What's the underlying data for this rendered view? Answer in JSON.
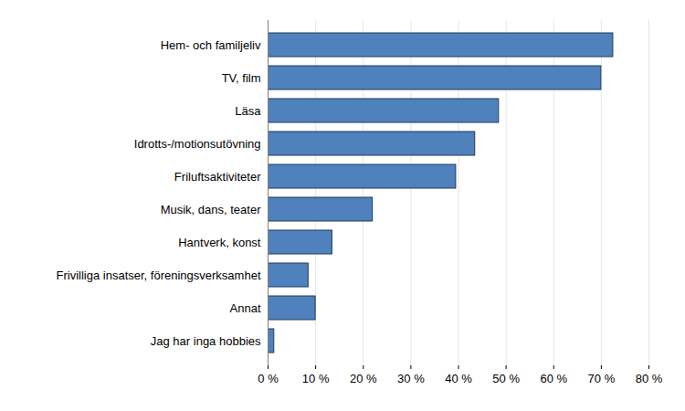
{
  "chart_data": {
    "type": "bar",
    "orientation": "horizontal",
    "categories": [
      "Hem- och familjeliv",
      "TV, film",
      "Läsa",
      "Idrotts-/motionsutövning",
      "Friluftsaktiviteter",
      "Musik, dans, teater",
      "Hantverk, konst",
      "Frivilliga insatser, föreningsverksamhet",
      "Annat",
      "Jag har inga hobbies"
    ],
    "values": [
      72.5,
      70,
      48.5,
      43.5,
      39.5,
      22,
      13.5,
      8.5,
      10,
      1.3
    ],
    "color": "#4f81bd",
    "xlim": [
      0,
      80
    ],
    "xticks": [
      {
        "value": 0,
        "label": "0 %"
      },
      {
        "value": 10,
        "label": "10 %"
      },
      {
        "value": 20,
        "label": "20 %"
      },
      {
        "value": 30,
        "label": "30 %"
      },
      {
        "value": 40,
        "label": "40 %"
      },
      {
        "value": 50,
        "label": "50 %"
      },
      {
        "value": 60,
        "label": "60 %"
      },
      {
        "value": 70,
        "label": "70 %"
      },
      {
        "value": 80,
        "label": "80 %"
      }
    ],
    "grid": true
  }
}
